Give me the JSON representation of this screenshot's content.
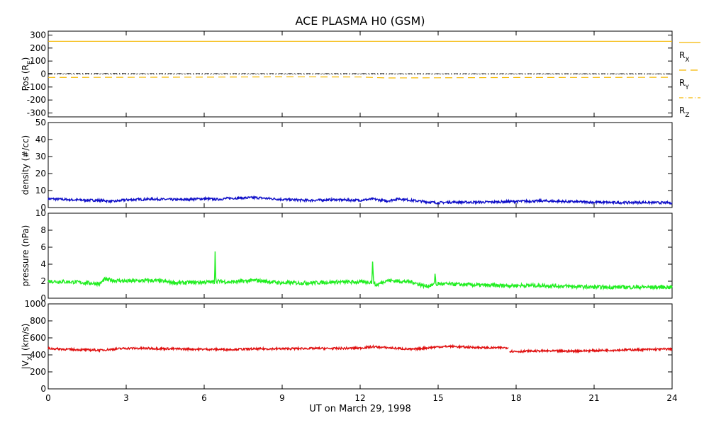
{
  "title": "ACE PLASMA H0 (GSM)",
  "xlabel": "UT on March 29, 1998",
  "x_ticks": [
    0,
    3,
    6,
    9,
    12,
    15,
    18,
    21,
    24
  ],
  "x_range": [
    0,
    24
  ],
  "colors": {
    "position": "#f5b800",
    "density": "#1010c8",
    "pressure": "#22ee22",
    "velocity": "#e01010"
  },
  "chart_data": [
    {
      "type": "line",
      "panel": "position",
      "ylabel": "Pos (R_E)",
      "ylabel_main": "Pos (R",
      "ylabel_sub": "E",
      "ylabel_tail": ")",
      "ylim": [
        -330,
        330
      ],
      "yticks": [
        -300,
        -200,
        -100,
        0,
        100,
        200,
        300
      ],
      "zero_line": true,
      "legend": [
        {
          "label": "R",
          "sub": "X",
          "style": "solid"
        },
        {
          "label": "R",
          "sub": "Y",
          "style": "dashed"
        },
        {
          "label": "R",
          "sub": "Z",
          "style": "dashdot"
        }
      ],
      "series": [
        {
          "name": "R_X",
          "style": "solid",
          "x": [
            0,
            24
          ],
          "y": [
            252,
            252
          ]
        },
        {
          "name": "R_Y",
          "style": "dashed",
          "x": [
            0,
            3,
            6,
            9,
            12,
            13,
            15,
            18,
            21,
            24
          ],
          "y": [
            -26,
            -25,
            -24,
            -22,
            -23,
            -30,
            -29,
            -27,
            -26,
            -25
          ]
        },
        {
          "name": "R_Z",
          "style": "dashdot",
          "x": [
            0,
            24
          ],
          "y": [
            4,
            2
          ]
        }
      ]
    },
    {
      "type": "line",
      "panel": "density",
      "ylabel": "density (#/cc)",
      "ylim": [
        0,
        50
      ],
      "yticks": [
        0,
        10,
        20,
        30,
        40,
        50
      ],
      "series": [
        {
          "name": "density",
          "x": [
            0,
            1,
            2,
            2.5,
            3,
            4,
            5,
            6,
            6.5,
            7,
            8,
            9,
            10,
            11,
            12,
            12.5,
            13,
            13.5,
            14,
            14.5,
            15,
            15.5,
            16,
            17,
            18,
            19,
            20,
            21,
            22,
            23,
            24
          ],
          "y": [
            5.2,
            4.5,
            4.2,
            3.6,
            4.5,
            5,
            4.6,
            5.2,
            4.8,
            5.5,
            5.8,
            4.8,
            4.2,
            4.6,
            4.3,
            5,
            3.8,
            5.2,
            4.2,
            3.4,
            2.8,
            3.2,
            3.1,
            3.2,
            3.6,
            3.9,
            3.5,
            3.1,
            2.9,
            3,
            2.7
          ]
        }
      ]
    },
    {
      "type": "line",
      "panel": "pressure",
      "ylabel": "pressure (nPa)",
      "ylim": [
        0,
        10
      ],
      "yticks": [
        0,
        2,
        4,
        6,
        8,
        10
      ],
      "series": [
        {
          "name": "pressure",
          "x": [
            0,
            1,
            2,
            2.15,
            3,
            4,
            5,
            6,
            6.4,
            6.42,
            6.45,
            6.5,
            7,
            8,
            9,
            10,
            11,
            12,
            12.45,
            12.48,
            12.52,
            12.6,
            13,
            14,
            14.5,
            14.85,
            14.88,
            14.92,
            15,
            16,
            17,
            18,
            19,
            20,
            21,
            22,
            23,
            24
          ],
          "y": [
            2.0,
            1.9,
            1.7,
            2.2,
            2.0,
            2.1,
            1.8,
            1.9,
            1.9,
            5.5,
            1.9,
            2.0,
            1.9,
            2.1,
            1.8,
            1.8,
            1.9,
            1.9,
            1.9,
            4.3,
            1.9,
            1.5,
            2.1,
            1.9,
            1.4,
            1.6,
            3.0,
            1.5,
            1.7,
            1.6,
            1.5,
            1.5,
            1.5,
            1.4,
            1.3,
            1.3,
            1.3,
            1.3
          ]
        }
      ]
    },
    {
      "type": "line",
      "panel": "velocity",
      "ylabel": "|V_X| (km/s)",
      "ylabel_main": "|V",
      "ylabel_sub": "X",
      "ylabel_tail": "| (km/s)",
      "ylim": [
        0,
        1000
      ],
      "yticks": [
        0,
        200,
        400,
        600,
        800,
        1000
      ],
      "series": [
        {
          "name": "|V_X|",
          "x": [
            0,
            1,
            2,
            3,
            4,
            5,
            6,
            7,
            8,
            9,
            10,
            11,
            12,
            12.5,
            13,
            14,
            15,
            15.5,
            16,
            17,
            17.7
          ],
          "y": [
            475,
            462,
            455,
            478,
            476,
            470,
            466,
            464,
            470,
            472,
            476,
            475,
            480,
            495,
            485,
            465,
            495,
            500,
            492,
            482,
            485
          ]
        },
        {
          "name": "|V_X| 2",
          "x": [
            17.75,
            18,
            19,
            20,
            21,
            22,
            23,
            24
          ],
          "y": [
            444,
            440,
            446,
            444,
            450,
            458,
            462,
            470
          ]
        }
      ]
    }
  ]
}
